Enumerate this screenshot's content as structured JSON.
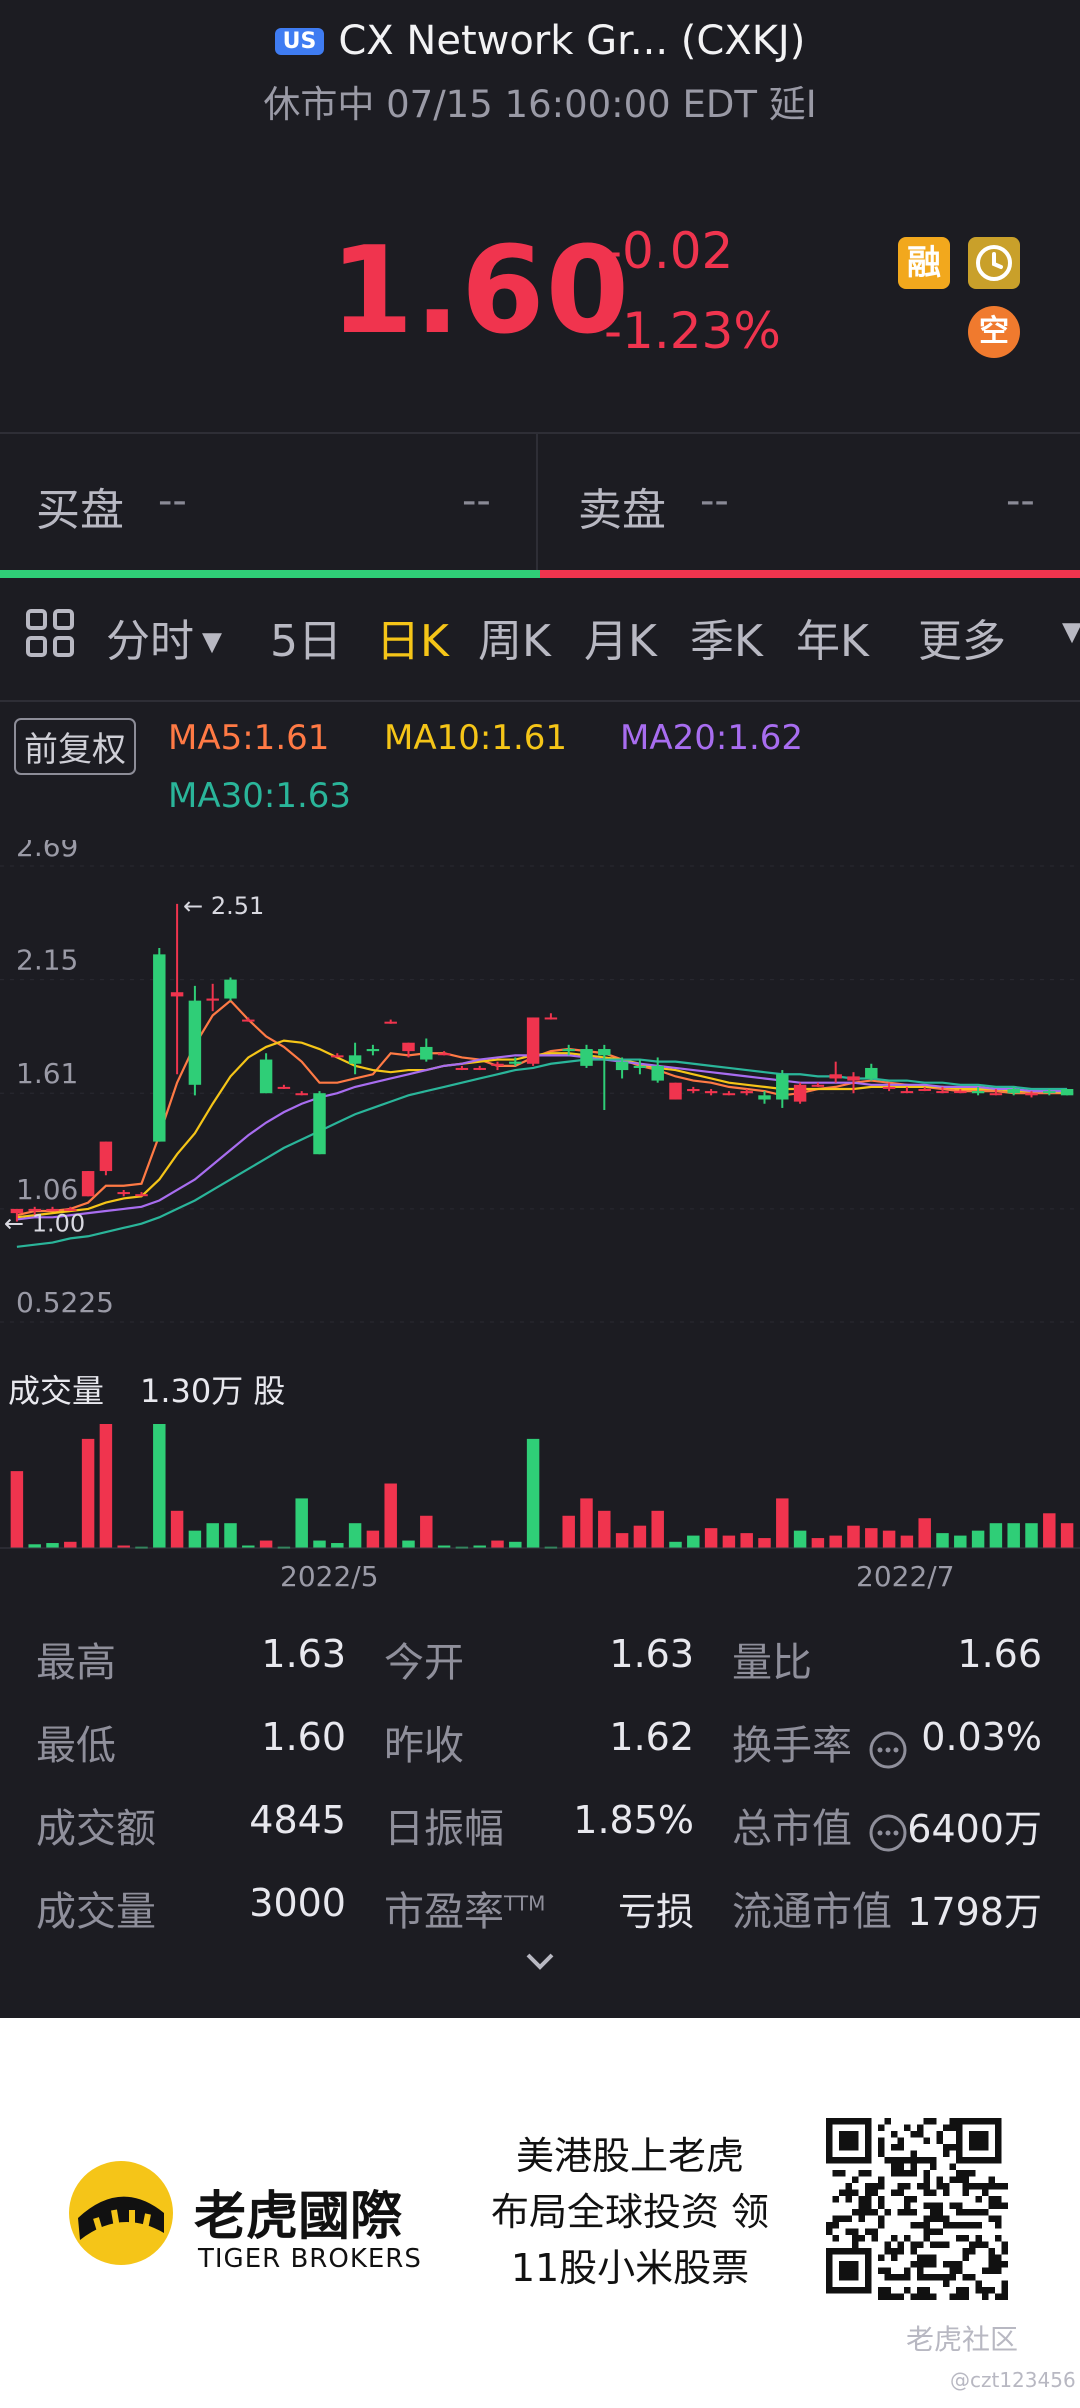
{
  "header": {
    "market_badge": "US",
    "title": "CX Network Gr... (CXKJ)",
    "status_line": "休市中 07/15 16:00:00 EDT 延I"
  },
  "quote": {
    "price": "1.60",
    "change": "-0.02",
    "change_pct": "-1.23%",
    "tags": [
      "融",
      "空"
    ]
  },
  "order_book": {
    "bid_label": "买盘",
    "bid_price": "--",
    "bid_size": "--",
    "ask_label": "卖盘",
    "ask_price": "--",
    "ask_size": "--"
  },
  "tabs": {
    "items": [
      "分时",
      "5日",
      "日K",
      "周K",
      "月K",
      "季K",
      "年K",
      "更多"
    ],
    "active": "日K"
  },
  "chart": {
    "adjust_label": "前复权",
    "ma5": "MA5:1.61",
    "ma10": "MA10:1.61",
    "ma20": "MA20:1.62",
    "ma30": "MA30:1.63",
    "colors": {
      "up": "#f0344e",
      "down": "#2fce77",
      "ma5": "#ff7a45",
      "ma10": "#f5c518",
      "ma20": "#a86df0",
      "ma30": "#2ab59a"
    },
    "y_ticks": [
      "2.69",
      "2.15",
      "1.61",
      "1.06",
      "0.5225"
    ],
    "high_marker": "2.51",
    "low_marker": "1.00",
    "volume_label": "成交量",
    "volume_value": "1.30万 股",
    "x_labels": [
      "2022/5",
      "2022/7"
    ]
  },
  "chart_data": {
    "type": "candlestick",
    "y_axis_ticks": [
      2.69,
      2.15,
      1.61,
      1.06,
      0.5225
    ],
    "ylim": [
      0.5225,
      2.69
    ],
    "marked_high": 2.51,
    "marked_low": 1.0,
    "x_labels": [
      "2022/5",
      "2022/7"
    ],
    "candles": [
      {
        "o": 1.04,
        "h": 1.06,
        "l": 1.0,
        "c": 1.06
      },
      {
        "o": 1.06,
        "h": 1.07,
        "l": 1.03,
        "c": 1.06
      },
      {
        "o": 1.06,
        "h": 1.07,
        "l": 1.05,
        "c": 1.06
      },
      {
        "o": 1.06,
        "h": 1.07,
        "l": 1.05,
        "c": 1.06
      },
      {
        "o": 1.12,
        "h": 1.24,
        "l": 1.12,
        "c": 1.24
      },
      {
        "o": 1.24,
        "h": 1.38,
        "l": 1.22,
        "c": 1.38
      },
      {
        "o": 1.14,
        "h": 1.15,
        "l": 1.12,
        "c": 1.14
      },
      {
        "o": 1.13,
        "h": 1.14,
        "l": 1.12,
        "c": 1.13
      },
      {
        "o": 2.27,
        "h": 2.3,
        "l": 1.38,
        "c": 1.38
      },
      {
        "o": 2.07,
        "h": 2.51,
        "l": 1.7,
        "c": 2.09
      },
      {
        "o": 2.05,
        "h": 2.12,
        "l": 1.6,
        "c": 1.65
      },
      {
        "o": 2.05,
        "h": 2.13,
        "l": 2.0,
        "c": 2.06
      },
      {
        "o": 2.15,
        "h": 2.16,
        "l": 2.05,
        "c": 2.06
      },
      {
        "o": 1.96,
        "h": 1.97,
        "l": 1.95,
        "c": 1.96
      },
      {
        "o": 1.77,
        "h": 1.8,
        "l": 1.61,
        "c": 1.61
      },
      {
        "o": 1.64,
        "h": 1.65,
        "l": 1.63,
        "c": 1.64
      },
      {
        "o": 1.61,
        "h": 1.62,
        "l": 1.6,
        "c": 1.61
      },
      {
        "o": 1.61,
        "h": 1.62,
        "l": 1.32,
        "c": 1.32
      },
      {
        "o": 1.79,
        "h": 1.8,
        "l": 1.78,
        "c": 1.79
      },
      {
        "o": 1.79,
        "h": 1.85,
        "l": 1.7,
        "c": 1.75
      },
      {
        "o": 1.82,
        "h": 1.84,
        "l": 1.79,
        "c": 1.81
      },
      {
        "o": 1.95,
        "h": 1.96,
        "l": 1.94,
        "c": 1.95
      },
      {
        "o": 1.81,
        "h": 1.85,
        "l": 1.78,
        "c": 1.85
      },
      {
        "o": 1.83,
        "h": 1.87,
        "l": 1.76,
        "c": 1.77
      },
      {
        "o": 1.8,
        "h": 1.81,
        "l": 1.79,
        "c": 1.8
      },
      {
        "o": 1.73,
        "h": 1.74,
        "l": 1.72,
        "c": 1.73
      },
      {
        "o": 1.73,
        "h": 1.74,
        "l": 1.72,
        "c": 1.73
      },
      {
        "o": 1.74,
        "h": 1.76,
        "l": 1.72,
        "c": 1.75
      },
      {
        "o": 1.76,
        "h": 1.78,
        "l": 1.74,
        "c": 1.75
      },
      {
        "o": 1.75,
        "h": 1.97,
        "l": 1.74,
        "c": 1.97
      },
      {
        "o": 1.97,
        "h": 1.99,
        "l": 1.96,
        "c": 1.97
      },
      {
        "o": 1.82,
        "h": 1.84,
        "l": 1.79,
        "c": 1.81
      },
      {
        "o": 1.82,
        "h": 1.84,
        "l": 1.73,
        "c": 1.74
      },
      {
        "o": 1.82,
        "h": 1.84,
        "l": 1.53,
        "c": 1.79
      },
      {
        "o": 1.76,
        "h": 1.78,
        "l": 1.68,
        "c": 1.72
      },
      {
        "o": 1.74,
        "h": 1.77,
        "l": 1.7,
        "c": 1.73
      },
      {
        "o": 1.74,
        "h": 1.78,
        "l": 1.66,
        "c": 1.67
      },
      {
        "o": 1.58,
        "h": 1.66,
        "l": 1.58,
        "c": 1.66
      },
      {
        "o": 1.62,
        "h": 1.64,
        "l": 1.61,
        "c": 1.63
      },
      {
        "o": 1.61,
        "h": 1.63,
        "l": 1.6,
        "c": 1.62
      },
      {
        "o": 1.61,
        "h": 1.62,
        "l": 1.6,
        "c": 1.61
      },
      {
        "o": 1.61,
        "h": 1.63,
        "l": 1.6,
        "c": 1.62
      },
      {
        "o": 1.6,
        "h": 1.62,
        "l": 1.56,
        "c": 1.58
      },
      {
        "o": 1.7,
        "h": 1.72,
        "l": 1.54,
        "c": 1.58
      },
      {
        "o": 1.57,
        "h": 1.66,
        "l": 1.56,
        "c": 1.65
      },
      {
        "o": 1.65,
        "h": 1.66,
        "l": 1.64,
        "c": 1.65
      },
      {
        "o": 1.68,
        "h": 1.76,
        "l": 1.66,
        "c": 1.7
      },
      {
        "o": 1.67,
        "h": 1.71,
        "l": 1.61,
        "c": 1.69
      },
      {
        "o": 1.73,
        "h": 1.75,
        "l": 1.67,
        "c": 1.68
      },
      {
        "o": 1.64,
        "h": 1.66,
        "l": 1.62,
        "c": 1.64
      },
      {
        "o": 1.62,
        "h": 1.64,
        "l": 1.61,
        "c": 1.62
      },
      {
        "o": 1.63,
        "h": 1.64,
        "l": 1.62,
        "c": 1.63
      },
      {
        "o": 1.62,
        "h": 1.64,
        "l": 1.61,
        "c": 1.62
      },
      {
        "o": 1.62,
        "h": 1.63,
        "l": 1.61,
        "c": 1.62
      },
      {
        "o": 1.62,
        "h": 1.64,
        "l": 1.6,
        "c": 1.61
      },
      {
        "o": 1.61,
        "h": 1.63,
        "l": 1.6,
        "c": 1.61
      },
      {
        "o": 1.63,
        "h": 1.64,
        "l": 1.6,
        "c": 1.61
      },
      {
        "o": 1.6,
        "h": 1.62,
        "l": 1.59,
        "c": 1.61
      },
      {
        "o": 1.62,
        "h": 1.63,
        "l": 1.6,
        "c": 1.61
      },
      {
        "o": 1.63,
        "h": 1.63,
        "l": 1.6,
        "c": 1.6
      }
    ],
    "ma_lines": {
      "MA5": [
        1.03,
        1.05,
        1.05,
        1.06,
        1.09,
        1.17,
        1.17,
        1.18,
        1.41,
        1.66,
        1.84,
        1.98,
        2.05,
        1.96,
        1.88,
        1.83,
        1.76,
        1.66,
        1.66,
        1.68,
        1.7,
        1.8,
        1.79,
        1.8,
        1.8,
        1.78,
        1.77,
        1.74,
        1.74,
        1.78,
        1.81,
        1.82,
        1.81,
        1.8,
        1.77,
        1.74,
        1.72,
        1.69,
        1.67,
        1.66,
        1.64,
        1.63,
        1.62,
        1.6,
        1.61,
        1.63,
        1.64,
        1.66,
        1.67,
        1.66,
        1.65,
        1.64,
        1.63,
        1.62,
        1.62,
        1.62,
        1.61,
        1.61,
        1.61,
        1.61
      ],
      "MA10": [
        1.02,
        1.03,
        1.04,
        1.05,
        1.06,
        1.09,
        1.11,
        1.12,
        1.2,
        1.32,
        1.42,
        1.56,
        1.69,
        1.78,
        1.83,
        1.86,
        1.85,
        1.82,
        1.78,
        1.74,
        1.72,
        1.71,
        1.72,
        1.72,
        1.74,
        1.75,
        1.76,
        1.77,
        1.77,
        1.79,
        1.8,
        1.8,
        1.79,
        1.78,
        1.77,
        1.75,
        1.73,
        1.72,
        1.7,
        1.68,
        1.66,
        1.65,
        1.64,
        1.63,
        1.63,
        1.63,
        1.63,
        1.63,
        1.64,
        1.64,
        1.64,
        1.64,
        1.64,
        1.63,
        1.63,
        1.63,
        1.62,
        1.62,
        1.62,
        1.61
      ],
      "MA20": [
        1.01,
        1.02,
        1.02,
        1.03,
        1.04,
        1.05,
        1.06,
        1.07,
        1.1,
        1.15,
        1.2,
        1.27,
        1.34,
        1.41,
        1.47,
        1.52,
        1.56,
        1.59,
        1.61,
        1.64,
        1.66,
        1.68,
        1.7,
        1.72,
        1.74,
        1.75,
        1.77,
        1.78,
        1.79,
        1.79,
        1.79,
        1.79,
        1.78,
        1.77,
        1.76,
        1.75,
        1.74,
        1.73,
        1.72,
        1.71,
        1.7,
        1.69,
        1.68,
        1.67,
        1.66,
        1.66,
        1.66,
        1.66,
        1.65,
        1.65,
        1.65,
        1.65,
        1.64,
        1.64,
        1.64,
        1.63,
        1.63,
        1.62,
        1.62,
        1.62
      ],
      "MA30": [
        0.88,
        0.89,
        0.9,
        0.92,
        0.93,
        0.95,
        0.97,
        0.99,
        1.02,
        1.06,
        1.1,
        1.15,
        1.2,
        1.25,
        1.3,
        1.35,
        1.39,
        1.43,
        1.47,
        1.51,
        1.54,
        1.57,
        1.6,
        1.62,
        1.64,
        1.66,
        1.68,
        1.7,
        1.72,
        1.73,
        1.75,
        1.76,
        1.77,
        1.77,
        1.77,
        1.77,
        1.76,
        1.76,
        1.75,
        1.74,
        1.73,
        1.72,
        1.71,
        1.7,
        1.7,
        1.69,
        1.69,
        1.68,
        1.68,
        1.67,
        1.67,
        1.66,
        1.66,
        1.65,
        1.65,
        1.64,
        1.64,
        1.63,
        1.63,
        1.63
      ]
    },
    "volume_unit": "股",
    "volume_max_label": "1.30万 股",
    "volume": [
      {
        "v": 0.62,
        "up": true
      },
      {
        "v": 0.03,
        "up": false
      },
      {
        "v": 0.04,
        "up": false
      },
      {
        "v": 0.05,
        "up": true
      },
      {
        "v": 0.88,
        "up": true
      },
      {
        "v": 1.0,
        "up": true
      },
      {
        "v": 0.02,
        "up": true
      },
      {
        "v": 0.01,
        "up": false
      },
      {
        "v": 1.0,
        "up": false
      },
      {
        "v": 0.3,
        "up": true
      },
      {
        "v": 0.14,
        "up": false
      },
      {
        "v": 0.2,
        "up": false
      },
      {
        "v": 0.2,
        "up": false
      },
      {
        "v": 0.02,
        "up": false
      },
      {
        "v": 0.06,
        "up": true
      },
      {
        "v": 0.01,
        "up": false
      },
      {
        "v": 0.4,
        "up": false
      },
      {
        "v": 0.06,
        "up": false
      },
      {
        "v": 0.04,
        "up": false
      },
      {
        "v": 0.2,
        "up": false
      },
      {
        "v": 0.14,
        "up": true
      },
      {
        "v": 0.52,
        "up": true
      },
      {
        "v": 0.06,
        "up": false
      },
      {
        "v": 0.26,
        "up": true
      },
      {
        "v": 0.02,
        "up": false
      },
      {
        "v": 0.01,
        "up": false
      },
      {
        "v": 0.02,
        "up": false
      },
      {
        "v": 0.06,
        "up": true
      },
      {
        "v": 0.05,
        "up": false
      },
      {
        "v": 0.88,
        "up": false
      },
      {
        "v": 0.01,
        "up": false
      },
      {
        "v": 0.26,
        "up": true
      },
      {
        "v": 0.4,
        "up": true
      },
      {
        "v": 0.3,
        "up": true
      },
      {
        "v": 0.12,
        "up": true
      },
      {
        "v": 0.18,
        "up": true
      },
      {
        "v": 0.3,
        "up": true
      },
      {
        "v": 0.05,
        "up": false
      },
      {
        "v": 0.1,
        "up": false
      },
      {
        "v": 0.16,
        "up": true
      },
      {
        "v": 0.1,
        "up": true
      },
      {
        "v": 0.12,
        "up": true
      },
      {
        "v": 0.08,
        "up": true
      },
      {
        "v": 0.4,
        "up": true
      },
      {
        "v": 0.14,
        "up": false
      },
      {
        "v": 0.08,
        "up": true
      },
      {
        "v": 0.1,
        "up": true
      },
      {
        "v": 0.18,
        "up": true
      },
      {
        "v": 0.16,
        "up": true
      },
      {
        "v": 0.14,
        "up": true
      },
      {
        "v": 0.1,
        "up": true
      },
      {
        "v": 0.24,
        "up": true
      },
      {
        "v": 0.12,
        "up": false
      },
      {
        "v": 0.1,
        "up": false
      },
      {
        "v": 0.14,
        "up": false
      },
      {
        "v": 0.2,
        "up": false
      },
      {
        "v": 0.2,
        "up": false
      },
      {
        "v": 0.2,
        "up": false
      },
      {
        "v": 0.28,
        "up": true
      },
      {
        "v": 0.2,
        "up": true
      }
    ]
  },
  "stats": {
    "col1": [
      {
        "label": "最高",
        "value": "1.63"
      },
      {
        "label": "最低",
        "value": "1.60"
      },
      {
        "label": "成交额",
        "value": "4845"
      },
      {
        "label": "成交量",
        "value": "3000"
      }
    ],
    "col2": [
      {
        "label": "今开",
        "value": "1.63"
      },
      {
        "label": "昨收",
        "value": "1.62"
      },
      {
        "label": "日振幅",
        "value": "1.85%"
      },
      {
        "label": "市盈率",
        "sup": "TTM",
        "value": "亏损"
      }
    ],
    "col3": [
      {
        "label": "量比",
        "value": "1.66"
      },
      {
        "label": "换手率",
        "value": "0.03%"
      },
      {
        "label": "总市值",
        "value": "6400万"
      },
      {
        "label": "流通市值",
        "value": "1798万"
      }
    ]
  },
  "footer": {
    "brand_cn": "老虎國際",
    "brand_en": "TIGER BROKERS",
    "slogan_line1": "美港股上老虎",
    "slogan_line2": "布局全球投资 领",
    "slogan_line3": "11股小米股票",
    "watermark": "老虎社区",
    "watermark_user": "@czt123456"
  }
}
